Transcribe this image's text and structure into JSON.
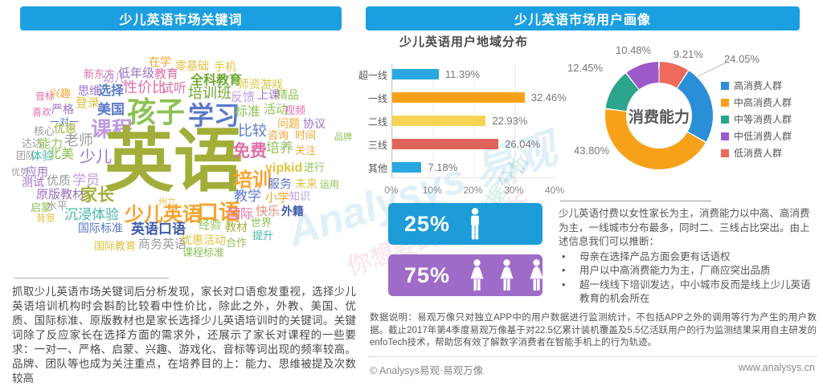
{
  "page": {
    "background": "#ffffff",
    "accent_blue": "#1C9FE0"
  },
  "left_panel": {
    "header": "少儿英语市场关键词",
    "wordcloud": {
      "palette": {
        "g": "#8CC152",
        "G": "#6FA832",
        "o": "#F5A430",
        "y": "#DFC13E",
        "p": "#9B6EC8",
        "lp": "#BE9BDF",
        "k": "#E06FA8",
        "b": "#5B79C9",
        "db": "#3F5BA9",
        "t": "#45B8A4",
        "gr": "#9B9B9B",
        "ol": "#A2AE39",
        "r": "#E98B80"
      },
      "words": [
        [
          "在学",
          185,
          70,
          14,
          "o",
          0
        ],
        [
          "零基础",
          218,
          75,
          14,
          "y",
          0
        ],
        [
          "手机",
          266,
          76,
          14,
          "y",
          0
        ],
        [
          "新东方",
          104,
          86,
          13,
          "k",
          0
        ],
        [
          "幼儿",
          128,
          90,
          14,
          "lp",
          0
        ],
        [
          "低年级",
          147,
          84,
          15,
          "p",
          0
        ],
        [
          "教育",
          192,
          85,
          15,
          "k",
          0
        ],
        [
          "全科教育",
          237,
          93,
          16,
          "G",
          1
        ],
        [
          "师资",
          296,
          98,
          14,
          "y",
          0
        ],
        [
          "游戏",
          324,
          98,
          14,
          "y",
          0
        ],
        [
          "音标",
          44,
          114,
          12,
          "k",
          0
        ],
        [
          "兴趣",
          62,
          110,
          13,
          "o",
          0
        ],
        [
          "思维",
          97,
          106,
          14,
          "p",
          0
        ],
        [
          "选择",
          122,
          106,
          16,
          "b",
          1
        ],
        [
          "性价比",
          153,
          100,
          18,
          "k",
          0
        ],
        [
          "试听",
          200,
          103,
          16,
          "k",
          0
        ],
        [
          "培训班",
          234,
          107,
          18,
          "G",
          0
        ],
        [
          "反馈",
          287,
          114,
          15,
          "lp",
          0
        ],
        [
          "上课",
          320,
          111,
          14,
          "p",
          0
        ],
        [
          "精品",
          344,
          111,
          14,
          "g",
          0
        ],
        [
          "喜欢",
          40,
          134,
          12,
          "k",
          0
        ],
        [
          "严格",
          64,
          129,
          14,
          "p",
          0
        ],
        [
          "登录",
          94,
          121,
          15,
          "y",
          0
        ],
        [
          "一对一",
          62,
          146,
          12,
          "b",
          0
        ],
        [
          "美国",
          121,
          128,
          17,
          "b",
          1
        ],
        [
          "孩子",
          158,
          122,
          36,
          "g",
          1
        ],
        [
          "学习",
          234,
          128,
          32,
          "b",
          1
        ],
        [
          "标准",
          292,
          132,
          16,
          "g",
          0
        ],
        [
          "活动",
          328,
          129,
          15,
          "g",
          0
        ],
        [
          "视频",
          354,
          131,
          13,
          "k",
          0
        ],
        [
          "问题",
          345,
          147,
          14,
          "o",
          0
        ],
        [
          "协议",
          377,
          147,
          14,
          "p",
          0
        ],
        [
          "核心",
          42,
          157,
          13,
          "gr",
          0
        ],
        [
          "优惠",
          67,
          153,
          14,
          "ol",
          0
        ],
        [
          "课程",
          113,
          148,
          26,
          "lp",
          1
        ],
        [
          "英语",
          130,
          158,
          86,
          "ol",
          1
        ],
        [
          "比较",
          296,
          154,
          18,
          "b",
          0
        ],
        [
          "咨询",
          333,
          162,
          13,
          "o",
          0
        ],
        [
          "时间",
          367,
          162,
          13,
          "o",
          0
        ],
        [
          "品牌",
          416,
          166,
          11,
          "g",
          0
        ],
        [
          "达达",
          27,
          172,
          13,
          "gr",
          0
        ],
        [
          "能力",
          48,
          172,
          15,
          "g",
          0
        ],
        [
          "老师",
          80,
          166,
          18,
          "gr",
          0
        ],
        [
          "免费",
          290,
          178,
          21,
          "k",
          1
        ],
        [
          "培养",
          331,
          176,
          17,
          "g",
          0
        ],
        [
          "关注",
          367,
          181,
          13,
          "o",
          0
        ],
        [
          "团队",
          20,
          188,
          12,
          "gr",
          0
        ],
        [
          "体验",
          38,
          187,
          14,
          "t",
          0
        ],
        [
          "北美",
          60,
          185,
          16,
          "g",
          0
        ],
        [
          "少儿",
          99,
          186,
          20,
          "p",
          0
        ],
        [
          "vipkid",
          330,
          202,
          16,
          "y",
          1
        ],
        [
          "进行",
          378,
          202,
          13,
          "g",
          0
        ],
        [
          "优势",
          14,
          210,
          11,
          "gr",
          0
        ],
        [
          "应用",
          32,
          207,
          14,
          "p",
          0
        ],
        [
          "测试",
          27,
          220,
          14,
          "p",
          0
        ],
        [
          "优质",
          58,
          218,
          15,
          "gr",
          0
        ],
        [
          "学员",
          90,
          216,
          17,
          "lp",
          0
        ],
        [
          "培训",
          290,
          213,
          24,
          "o",
          1
        ],
        [
          "服务",
          333,
          222,
          15,
          "b",
          0
        ],
        [
          "未来",
          367,
          222,
          14,
          "y",
          0
        ],
        [
          "运用",
          398,
          224,
          12,
          "g",
          0
        ],
        [
          "原版教材",
          45,
          235,
          15,
          "p",
          0
        ],
        [
          "家长",
          100,
          233,
          21,
          "ol",
          1
        ],
        [
          "州立",
          197,
          247,
          11,
          "y",
          0
        ],
        [
          "教学",
          291,
          236,
          17,
          "b",
          0
        ],
        [
          "小学",
          330,
          239,
          15,
          "o",
          0
        ],
        [
          "知识",
          360,
          238,
          13,
          "lp",
          0
        ],
        [
          "启蒙",
          38,
          252,
          13,
          "g",
          0
        ],
        [
          "水平",
          58,
          250,
          13,
          "gr",
          0
        ],
        [
          "背景",
          45,
          266,
          12,
          "y",
          0
        ],
        [
          "沉浸体验",
          80,
          259,
          17,
          "t",
          0
        ],
        [
          "少儿英语",
          155,
          256,
          24,
          "o",
          1
        ],
        [
          "口语",
          245,
          252,
          27,
          "o",
          1
        ],
        [
          "国际",
          283,
          260,
          16,
          "k",
          0
        ],
        [
          "快乐",
          318,
          256,
          15,
          "r",
          0
        ],
        [
          "外籍",
          350,
          256,
          14,
          "db",
          1
        ],
        [
          "国际标准",
          97,
          277,
          14,
          "b",
          0
        ],
        [
          "英语口语",
          163,
          277,
          17,
          "db",
          1
        ],
        [
          "经验",
          247,
          273,
          14,
          "g",
          0
        ],
        [
          "教材",
          280,
          276,
          14,
          "ol",
          0
        ],
        [
          "世界",
          312,
          271,
          13,
          "g",
          0
        ],
        [
          "提升",
          314,
          287,
          13,
          "t",
          0
        ],
        [
          "国际教育",
          117,
          300,
          13,
          "y",
          0
        ],
        [
          "商务英语",
          172,
          297,
          15,
          "gr",
          0
        ],
        [
          "优惠活动",
          225,
          292,
          14,
          "y",
          0
        ],
        [
          "合作",
          281,
          296,
          13,
          "g",
          0
        ],
        [
          "课程标准",
          227,
          308,
          13,
          "g",
          0
        ]
      ]
    },
    "paragraph": "抓取少儿英语市场关键词后分析发现，家长对口语愈发重视，选择少儿英语培训机构时会斟酌比较看中性价比，除此之外，外教、美国、优质、国际标准、原版教材也是家长选择少儿英语培训时的关键词。关键词除了反应家长在选择方面的需求外，还展示了家长对课程的一些要求：一对一、严格、启蒙、兴趣、游戏化、音标等词出现的频率较高。品牌、团队等也成为关注重点，在培养目的上：能力、思维被提及次数较高"
  },
  "right_panel": {
    "header": "少儿英语市场用户画像",
    "gender": {
      "male_pct": "25%",
      "female_pct": "75%",
      "male_icon": "male-person-icon",
      "female_icon": "female-person-icon",
      "male_block_color": "#1E9CD8",
      "female_block_color": "#9F6BC8"
    },
    "insight": {
      "intro": "少儿英语付费以女性家长为主，消费能力以中高、高消费为主，一线城市分布最多，同时二、三线占比突出。由上述信息我们可以推断：",
      "bullets": [
        "母亲在选择产品方面会更有话语权",
        "用户以中高消费能力为主，厂商应突出品质",
        "超一线线下培训发达，中小城市反而是线上少儿英语教育的机会所在"
      ]
    },
    "data_note": "数据说明：易观万像只对独立APP中的用户数据进行监测统计，不包括APP之外的调用等行为产生的用户数据。截止2017年第4季度易观万像基于对22.5亿累计装机覆盖及5.5亿活跃用户的行为监测结果采用自主研发的enfoTech技术，帮助您有效了解数字消费者在智能手机上的行为轨迹。",
    "footer": {
      "copyright": "© Analysys易观·易观万像",
      "website": "www.analysys.cn"
    }
  },
  "watermarks": {
    "wm1": "Analysys 易观",
    "wm2": "你想要的数据分析",
    "wm3": "数据分析"
  },
  "chart_data": [
    {
      "type": "bar",
      "orientation": "horizontal",
      "title": "少儿英语用户地域分布",
      "categories": [
        "超一线",
        "一线",
        "二线",
        "三线",
        "其他"
      ],
      "values": [
        11.39,
        32.46,
        22.93,
        26.04,
        7.18
      ],
      "value_labels": [
        "11.39%",
        "32.46%",
        "22.93%",
        "26.04%",
        "7.18%"
      ],
      "bar_colors": [
        "#29A7E0",
        "#F7A11A",
        "#F8D353",
        "#E0635A",
        "#29A7E0"
      ],
      "xlabel": "",
      "ylabel": "",
      "xlim": [
        0,
        40
      ],
      "x_ticks": [
        "0%",
        "10%",
        "20%",
        "30%",
        "40%"
      ],
      "grid": true
    },
    {
      "type": "pie",
      "style": "donut",
      "center_label": "消费能力",
      "labels": [
        "高消费人群",
        "中高消费人群",
        "中等消费人群",
        "中低消费人群",
        "低消费人群"
      ],
      "values": [
        24.05,
        43.8,
        12.45,
        10.48,
        9.21
      ],
      "value_labels": [
        "24.05%",
        "43.80%",
        "12.45%",
        "10.48%",
        "9.21%"
      ],
      "colors": [
        "#2B8FD8",
        "#F7A11A",
        "#2BA58B",
        "#9C59C9",
        "#EE6A5C"
      ],
      "legend_position": "right",
      "clockwise_order_from_top": [
        "低消费人群",
        "高消费人群",
        "中高消费人群",
        "中等消费人群",
        "中低消费人群"
      ]
    }
  ]
}
